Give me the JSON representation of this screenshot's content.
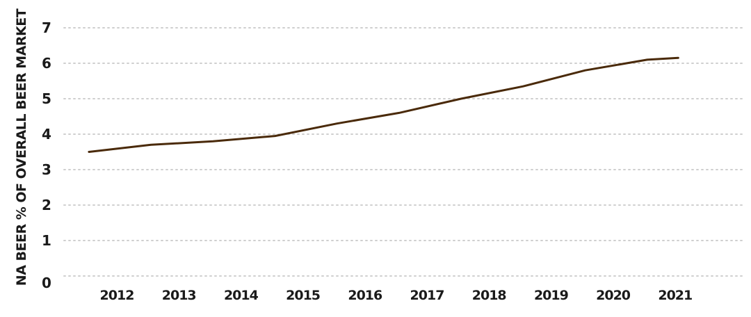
{
  "chart_data": {
    "type": "line",
    "title": "",
    "xlabel": "",
    "ylabel": "NA BEER % OF OVERALL BEER MARKET",
    "categories": [
      "2012",
      "2013",
      "2014",
      "2015",
      "2016",
      "2017",
      "2018",
      "2019",
      "2020",
      "2021"
    ],
    "y_ticks": [
      "0",
      "1",
      "2",
      "3",
      "4",
      "5",
      "6",
      "7"
    ],
    "ylim": [
      0,
      7
    ],
    "grid": true,
    "legend": "none",
    "series": [
      {
        "color": "#4a2a0a",
        "points": [
          {
            "x": 2011.55,
            "y": 3.5
          },
          {
            "x": 2012.55,
            "y": 3.7
          },
          {
            "x": 2013.55,
            "y": 3.8
          },
          {
            "x": 2014.55,
            "y": 3.95
          },
          {
            "x": 2015.55,
            "y": 4.3
          },
          {
            "x": 2016.55,
            "y": 4.6
          },
          {
            "x": 2017.55,
            "y": 5.0
          },
          {
            "x": 2018.55,
            "y": 5.35
          },
          {
            "x": 2019.55,
            "y": 5.8
          },
          {
            "x": 2020.55,
            "y": 6.1
          },
          {
            "x": 2021.05,
            "y": 6.15
          }
        ]
      }
    ]
  }
}
